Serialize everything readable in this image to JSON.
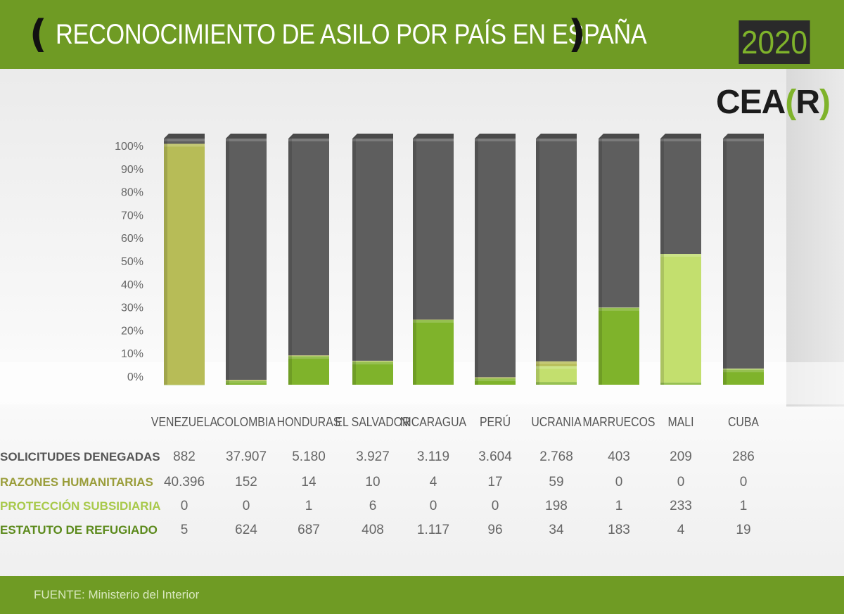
{
  "header": {
    "title": "RECONOCIMIENTO DE ASILO POR PAÍS EN ESPAÑA",
    "year": "2020",
    "bracket_left": "(",
    "bracket_right": ")"
  },
  "logo": {
    "text": "CEA",
    "bracket_open": "(",
    "letter": "R",
    "bracket_close": ")"
  },
  "footer": {
    "source": "FUENTE: Ministerio del Interior"
  },
  "colors": {
    "header_green": "#6f9b24",
    "denied": "#5e5e5e",
    "humanitarian": "#b7bc57",
    "subsidiary": "#c3df6e",
    "refugee": "#7fb32b"
  },
  "chart_data": {
    "type": "bar",
    "stacked": true,
    "normalized": true,
    "y_tick_labels": [
      "0%",
      "10%",
      "20%",
      "30%",
      "40%",
      "50%",
      "60%",
      "70%",
      "80%",
      "90%",
      "100%"
    ],
    "ylim": [
      0,
      100
    ],
    "categories": [
      "VENEZUELA",
      "COLOMBIA",
      "HONDURAS",
      "EL SALVADOR",
      "NICARAGUA",
      "PERÚ",
      "UCRANIA",
      "MARRUECOS",
      "MALI",
      "CUBA"
    ],
    "series": [
      {
        "name": "ESTATUTO DE REFUGIADO",
        "color": "#7fb32b",
        "values": [
          "5",
          "624",
          "687",
          "408",
          "1.117",
          "96",
          "34",
          "183",
          "4",
          "19"
        ]
      },
      {
        "name": "PROTECCIÓN SUBSIDIARIA",
        "color": "#c3df6e",
        "values": [
          "0",
          "0",
          "1",
          "6",
          "0",
          "0",
          "198",
          "1",
          "233",
          "1"
        ]
      },
      {
        "name": "RAZONES HUMANITARIAS",
        "color": "#b7bc57",
        "values": [
          "40.396",
          "152",
          "14",
          "10",
          "4",
          "17",
          "59",
          "0",
          "0",
          "0"
        ]
      },
      {
        "name": "SOLICITUDES DENEGADAS",
        "color": "#5e5e5e",
        "values": [
          "882",
          "37.907",
          "5.180",
          "3.927",
          "3.119",
          "3.604",
          "2.768",
          "403",
          "209",
          "286"
        ]
      }
    ]
  },
  "table": {
    "rows": [
      {
        "label": "SOLICITUDES DENEGADAS",
        "color": "#555555"
      },
      {
        "label": "RAZONES HUMANITARIAS",
        "color": "#9a9d3a"
      },
      {
        "label": "PROTECCIÓN SUBSIDIARIA",
        "color": "#a8c94a"
      },
      {
        "label": "ESTATUTO DE REFUGIADO",
        "color": "#5c8a1c"
      }
    ]
  }
}
